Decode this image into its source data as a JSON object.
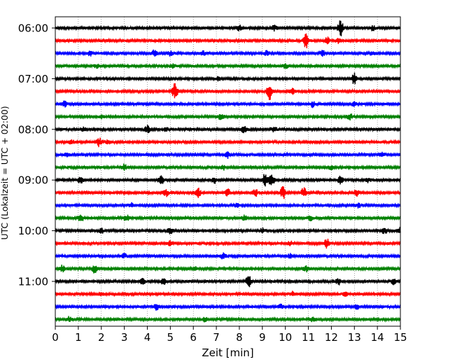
{
  "chart_data": {
    "type": "line",
    "title": "",
    "xlabel": "Zeit  [min]",
    "ylabel": "UTC (Lokalzeit = UTC + 02:00)",
    "xlim": [
      0,
      15
    ],
    "x_ticks": [
      "0",
      "1",
      "2",
      "3",
      "4",
      "5",
      "6",
      "7",
      "8",
      "9",
      "10",
      "11",
      "12",
      "13",
      "14",
      "15"
    ],
    "y_ticks": [
      "06:00",
      "07:00",
      "08:00",
      "09:00",
      "10:00",
      "11:00"
    ],
    "grid": "vertical-dotted",
    "color_cycle": [
      "#000000",
      "#ff0000",
      "#0000ff",
      "#008000"
    ],
    "series": [
      {
        "start": "06:00",
        "color": "#000000",
        "events": [
          [
            8.0,
            4
          ],
          [
            9.5,
            4
          ],
          [
            12.4,
            12
          ],
          [
            13.8,
            3
          ]
        ]
      },
      {
        "start": "06:15",
        "color": "#ff0000",
        "events": [
          [
            10.9,
            10
          ],
          [
            11.8,
            5
          ],
          [
            12.3,
            3
          ]
        ]
      },
      {
        "start": "06:30",
        "color": "#0000ff",
        "events": [
          [
            1.5,
            4
          ],
          [
            4.3,
            4
          ],
          [
            5.0,
            3
          ],
          [
            6.4,
            3
          ],
          [
            9.2,
            3
          ],
          [
            11.6,
            4
          ],
          [
            13.8,
            3
          ]
        ]
      },
      {
        "start": "06:45",
        "color": "#008000",
        "events": [
          [
            1.8,
            3
          ],
          [
            5.1,
            3
          ],
          [
            10.0,
            3
          ]
        ]
      },
      {
        "start": "07:00",
        "color": "#000000",
        "events": [
          [
            13.0,
            8
          ],
          [
            7.1,
            3
          ]
        ]
      },
      {
        "start": "07:15",
        "color": "#ff0000",
        "events": [
          [
            5.2,
            12
          ],
          [
            9.3,
            12
          ],
          [
            10.3,
            4
          ]
        ]
      },
      {
        "start": "07:30",
        "color": "#0000ff",
        "events": [
          [
            0.4,
            4
          ],
          [
            11.2,
            4
          ],
          [
            13.0,
            3
          ]
        ]
      },
      {
        "start": "07:45",
        "color": "#008000",
        "events": [
          [
            2.0,
            3
          ],
          [
            7.2,
            4
          ],
          [
            12.8,
            4
          ]
        ]
      },
      {
        "start": "08:00",
        "color": "#000000",
        "events": [
          [
            1.2,
            3
          ],
          [
            4.0,
            5
          ],
          [
            4.8,
            3
          ],
          [
            8.2,
            5
          ],
          [
            9.5,
            4
          ]
        ]
      },
      {
        "start": "08:15",
        "color": "#ff0000",
        "events": [
          [
            0.7,
            3
          ],
          [
            1.9,
            6
          ],
          [
            2.3,
            3
          ]
        ]
      },
      {
        "start": "08:30",
        "color": "#0000ff",
        "events": [
          [
            0.5,
            3
          ],
          [
            7.5,
            4
          ],
          [
            14.2,
            3
          ]
        ]
      },
      {
        "start": "08:45",
        "color": "#008000",
        "events": [
          [
            3.0,
            4
          ],
          [
            7.3,
            3
          ],
          [
            12.0,
            3
          ]
        ]
      },
      {
        "start": "09:00",
        "color": "#000000",
        "events": [
          [
            1.1,
            5
          ],
          [
            4.6,
            8
          ],
          [
            6.9,
            4
          ],
          [
            9.1,
            8
          ],
          [
            9.4,
            10
          ],
          [
            12.4,
            6
          ],
          [
            13.6,
            3
          ]
        ]
      },
      {
        "start": "09:15",
        "color": "#ff0000",
        "events": [
          [
            4.8,
            5
          ],
          [
            6.2,
            7
          ],
          [
            7.5,
            5
          ],
          [
            8.7,
            5
          ],
          [
            9.9,
            9
          ],
          [
            10.8,
            6
          ],
          [
            13.1,
            4
          ]
        ]
      },
      {
        "start": "09:30",
        "color": "#0000ff",
        "events": [
          [
            3.3,
            3
          ],
          [
            7.9,
            3
          ],
          [
            13.2,
            3
          ]
        ]
      },
      {
        "start": "09:45",
        "color": "#008000",
        "events": [
          [
            1.1,
            6
          ],
          [
            3.1,
            4
          ],
          [
            8.2,
            4
          ],
          [
            11.1,
            3
          ]
        ]
      },
      {
        "start": "10:00",
        "color": "#000000",
        "events": [
          [
            2.0,
            3
          ],
          [
            5.0,
            4
          ],
          [
            9.0,
            3
          ],
          [
            14.3,
            4
          ],
          [
            15.0,
            4
          ]
        ]
      },
      {
        "start": "10:15",
        "color": "#ff0000",
        "events": [
          [
            5.0,
            3
          ],
          [
            11.8,
            6
          ],
          [
            10.2,
            3
          ]
        ]
      },
      {
        "start": "10:30",
        "color": "#0000ff",
        "events": [
          [
            3.0,
            3
          ],
          [
            7.3,
            4
          ],
          [
            10.2,
            3
          ]
        ]
      },
      {
        "start": "10:45",
        "color": "#008000",
        "events": [
          [
            0.3,
            5
          ],
          [
            1.7,
            6
          ],
          [
            6.1,
            3
          ],
          [
            10.9,
            4
          ]
        ]
      },
      {
        "start": "11:00",
        "color": "#000000",
        "events": [
          [
            3.8,
            4
          ],
          [
            4.7,
            4
          ],
          [
            8.4,
            8
          ],
          [
            12.3,
            4
          ],
          [
            14.7,
            4
          ]
        ]
      },
      {
        "start": "11:15",
        "color": "#ff0000",
        "events": [
          [
            2.0,
            3
          ],
          [
            10.3,
            3
          ],
          [
            12.6,
            3
          ]
        ]
      },
      {
        "start": "11:30",
        "color": "#0000ff",
        "events": [
          [
            4.4,
            4
          ],
          [
            9.8,
            3
          ],
          [
            13.1,
            3
          ]
        ]
      },
      {
        "start": "11:45",
        "color": "#008000",
        "events": [
          [
            0.6,
            3
          ],
          [
            6.5,
            3
          ],
          [
            11.2,
            3
          ]
        ]
      }
    ]
  }
}
